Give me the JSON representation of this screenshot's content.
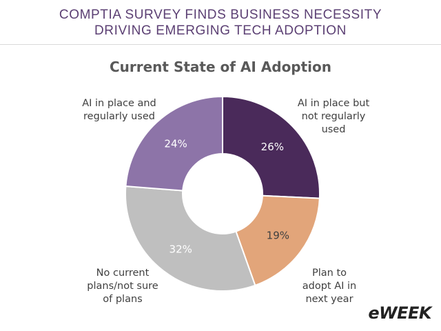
{
  "header": {
    "line1": "COMPTIA SURVEY FINDS BUSINESS NECESSITY",
    "line2": "DRIVING EMERGING TECH ADOPTION"
  },
  "brand": {
    "logo_text": "eWEEK"
  },
  "chart_data": {
    "type": "pie",
    "donut": true,
    "title": "Current State of AI Adoption",
    "categories": [
      "AI in place but not regularly used",
      "Plan to adopt AI in next year",
      "No current plans/not sure of plans",
      "AI in place and regularly used"
    ],
    "values": [
      26,
      19,
      32,
      24
    ],
    "value_labels": [
      "26%",
      "19%",
      "32%",
      "24%"
    ],
    "colors": [
      "#4a2a5a",
      "#e2a57a",
      "#bfbfbf",
      "#8d74a8"
    ],
    "label_lines": [
      [
        "AI in place but",
        "not regularly",
        "used"
      ],
      [
        "Plan to",
        "adopt AI in",
        "next year"
      ],
      [
        "No current",
        "plans/not sure",
        "of plans"
      ],
      [
        "AI in place and",
        "regularly used"
      ]
    ]
  }
}
